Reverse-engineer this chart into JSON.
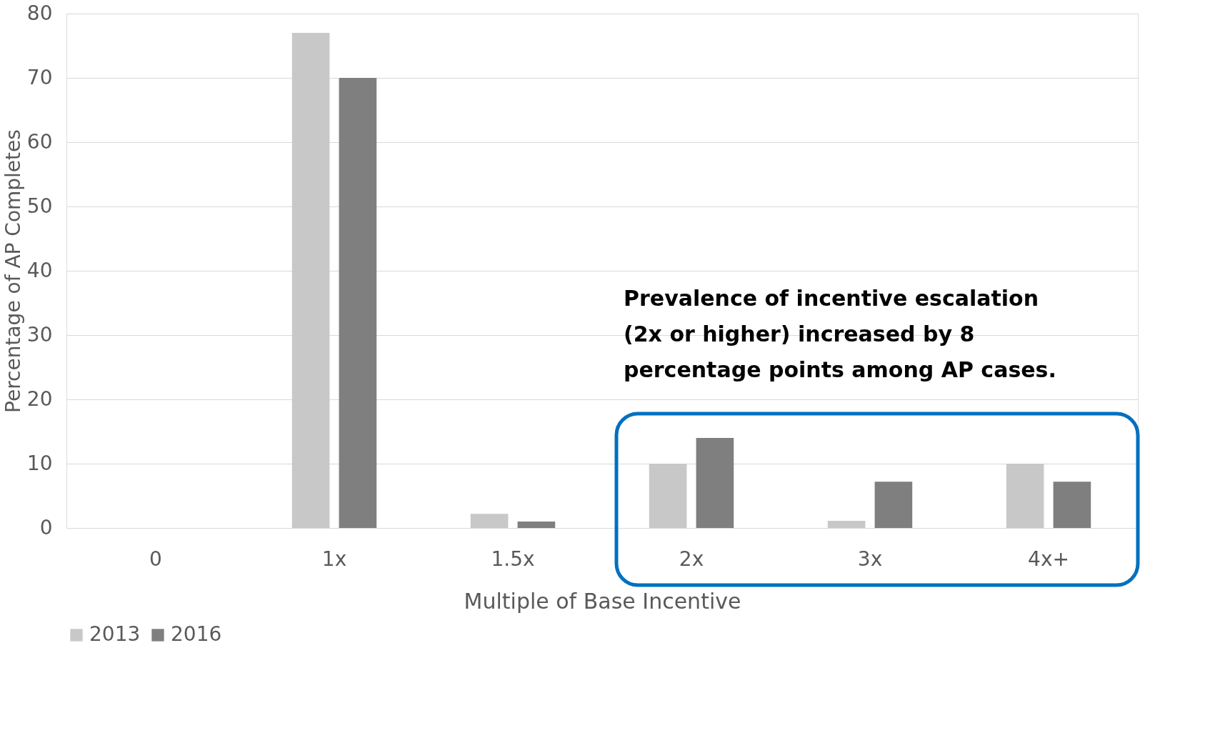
{
  "chart_data": {
    "type": "bar",
    "xlabel": "Multiple of Base Incentive",
    "ylabel": "Percentage of AP Completes",
    "categories": [
      "0",
      "1x",
      "1.5x",
      "2x",
      "3x",
      "4x+"
    ],
    "series": [
      {
        "name": "2013",
        "color": "#c8c8c8",
        "values": [
          0,
          77,
          2.2,
          10,
          1.1,
          10
        ]
      },
      {
        "name": "2016",
        "color": "#7f7f7f",
        "values": [
          0,
          70,
          1,
          14,
          7.2,
          7.2
        ]
      }
    ],
    "ylim": [
      0,
      80
    ],
    "yticks": [
      0,
      10,
      20,
      30,
      40,
      50,
      60,
      70,
      80
    ],
    "grid": "y",
    "legend": "bottom",
    "annotations": [
      "Prevalence of incentive escalation (2x or higher) increased by 8 percentage points among AP cases."
    ]
  }
}
